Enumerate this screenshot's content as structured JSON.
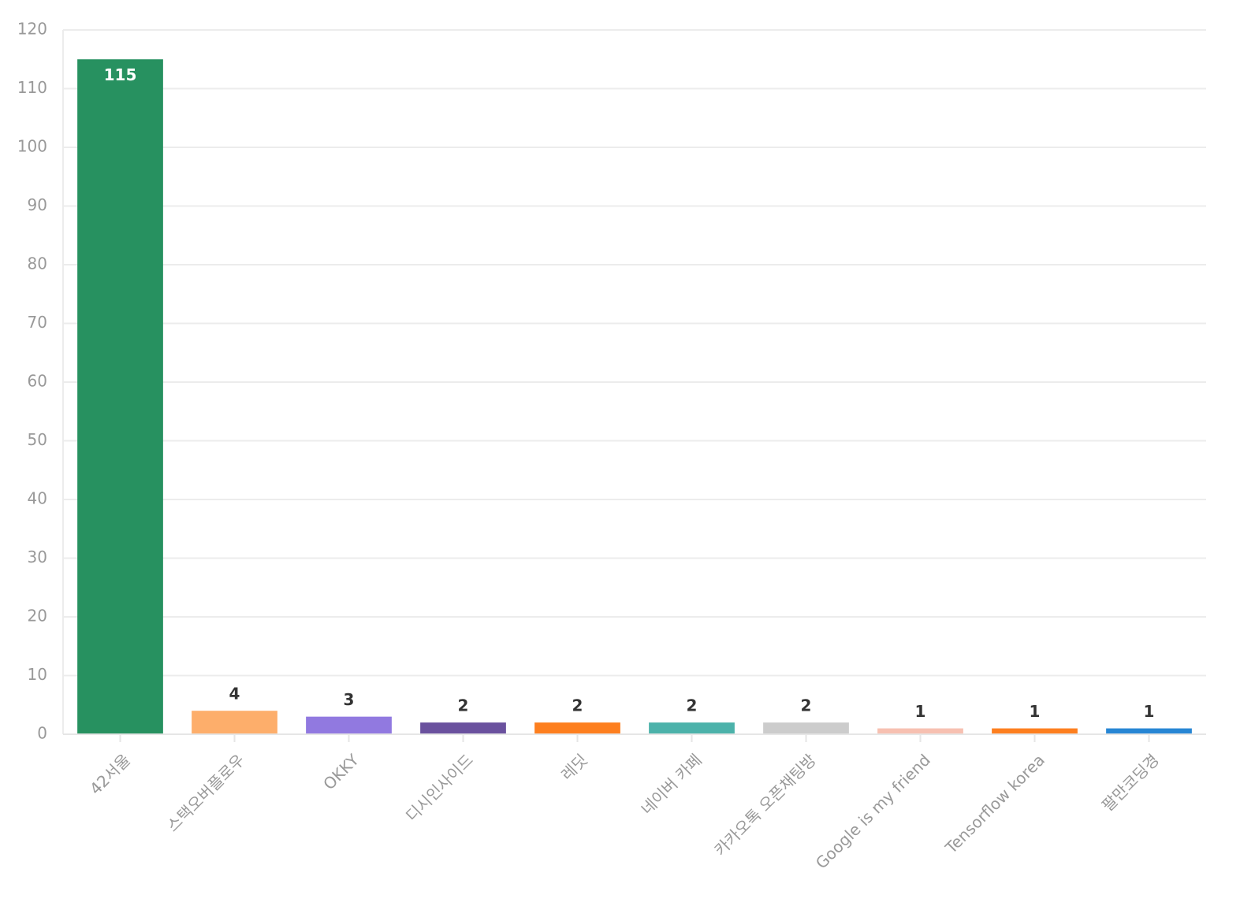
{
  "chart_data": {
    "type": "bar",
    "categories": [
      "42서울",
      "스택오버플로우",
      "OKKY",
      "디시인사이드",
      "레딧",
      "네이버 카페",
      "카카오톡 오픈채팅방",
      "Google is my friend",
      "Tensorflow korea",
      "팔만코딩경"
    ],
    "values": [
      115,
      4,
      3,
      2,
      2,
      2,
      2,
      1,
      1,
      1
    ],
    "colors": [
      "#279160",
      "#fdae6b",
      "#9179e0",
      "#6a519e",
      "#fd7f1f",
      "#4cb2aa",
      "#cccccc",
      "#f7c0b1",
      "#fd7f1f",
      "#2786d4"
    ],
    "ylim": [
      0,
      120
    ],
    "yticks": [
      0,
      10,
      20,
      30,
      40,
      50,
      60,
      70,
      80,
      90,
      100,
      110,
      120
    ],
    "grid": true
  }
}
